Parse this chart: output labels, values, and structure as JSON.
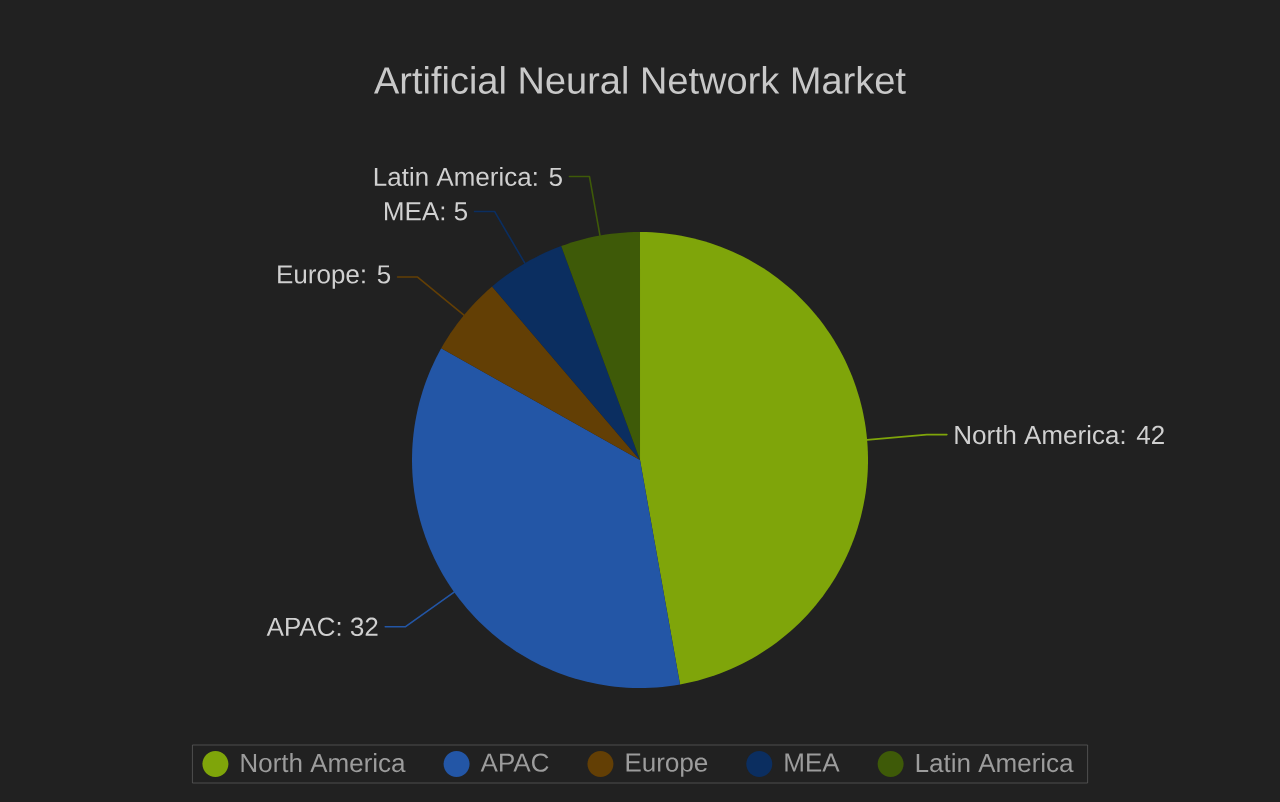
{
  "chart_data": {
    "type": "pie",
    "title": "Artificial Neural Network Market",
    "categories": [
      "North America",
      "APAC",
      "Europe",
      "MEA",
      "Latin America"
    ],
    "values": [
      42,
      32,
      5,
      5,
      5
    ],
    "value_labels": [
      "North America: 42",
      "APAC: 32",
      "Europe: 5",
      "MEA: 5",
      "Latin America: 5"
    ],
    "colors": [
      "#7fa50a",
      "#2356a6",
      "#633f05",
      "#0b2e60",
      "#3e5a08"
    ],
    "legend": "bottom"
  }
}
